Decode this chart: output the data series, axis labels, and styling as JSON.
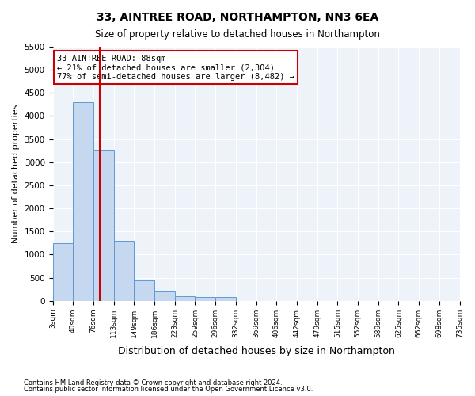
{
  "title": "33, AINTREE ROAD, NORTHAMPTON, NN3 6EA",
  "subtitle": "Size of property relative to detached houses in Northampton",
  "xlabel": "Distribution of detached houses by size in Northampton",
  "ylabel": "Number of detached properties",
  "footnote1": "Contains HM Land Registry data © Crown copyright and database right 2024.",
  "footnote2": "Contains public sector information licensed under the Open Government Licence v3.0.",
  "annotation_line1": "33 AINTREE ROAD: 88sqm",
  "annotation_line2": "← 21% of detached houses are smaller (2,304)",
  "annotation_line3": "77% of semi-detached houses are larger (8,482) →",
  "bar_color": "#c5d8f0",
  "bar_edge_color": "#5b9bd5",
  "red_line_color": "#cc0000",
  "background_color": "#eef2f9",
  "bin_labels": [
    "3sqm",
    "40sqm",
    "76sqm",
    "113sqm",
    "149sqm",
    "186sqm",
    "223sqm",
    "259sqm",
    "296sqm",
    "332sqm",
    "369sqm",
    "406sqm",
    "442sqm",
    "479sqm",
    "515sqm",
    "552sqm",
    "589sqm",
    "625sqm",
    "662sqm",
    "698sqm",
    "735sqm"
  ],
  "bar_values": [
    1250,
    4300,
    3250,
    1300,
    450,
    200,
    100,
    75,
    75,
    0,
    0,
    0,
    0,
    0,
    0,
    0,
    0,
    0,
    0,
    0
  ],
  "red_line_x": 2.33,
  "ylim": [
    0,
    5500
  ],
  "yticks": [
    0,
    500,
    1000,
    1500,
    2000,
    2500,
    3000,
    3500,
    4000,
    4500,
    5000,
    5500
  ]
}
